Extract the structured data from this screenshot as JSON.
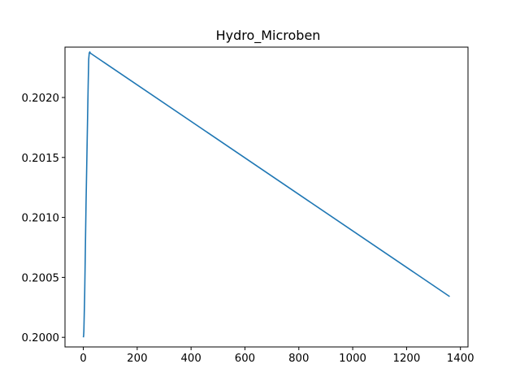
{
  "chart_data": {
    "type": "line",
    "title": "Hydro_Microben",
    "xlabel": "",
    "ylabel": "",
    "xlim": [
      -68,
      1428
    ],
    "ylim": [
      0.19992,
      0.20242
    ],
    "xticks": [
      0,
      200,
      400,
      600,
      800,
      1000,
      1200,
      1400
    ],
    "xtick_labels": [
      "0",
      "200",
      "400",
      "600",
      "800",
      "1000",
      "1200",
      "1400"
    ],
    "yticks": [
      0.2,
      0.2005,
      0.201,
      0.2015,
      0.202
    ],
    "ytick_labels": [
      "0.2000",
      "0.2005",
      "0.2010",
      "0.2015",
      "0.2020"
    ],
    "grid": false,
    "legend": "none",
    "series": [
      {
        "color": "#1f77b4",
        "x": [
          0,
          1,
          2,
          3,
          5,
          8,
          10,
          14,
          18,
          20,
          22,
          24,
          26,
          1360
        ],
        "y": [
          0.2,
          0.20001,
          0.20005,
          0.20015,
          0.20035,
          0.2008,
          0.2011,
          0.2016,
          0.2021,
          0.20232,
          0.20237,
          0.20238,
          0.20237,
          0.20034
        ]
      }
    ]
  }
}
